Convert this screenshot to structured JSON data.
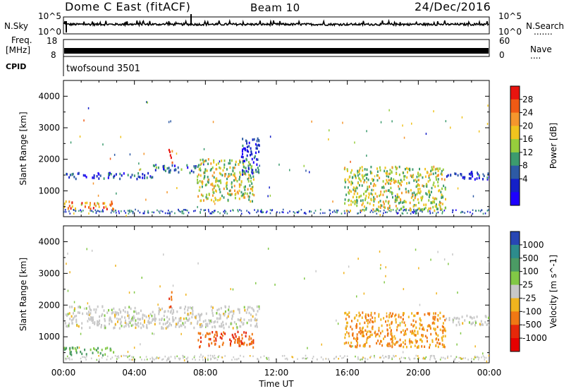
{
  "header": {
    "station": "Dome C East (fitACF)",
    "beam": "Beam 10",
    "date": "24/Dec/2016"
  },
  "strips": {
    "nsky_label": "N.Sky",
    "nsky_ticks": [
      "10^5",
      "10^0"
    ],
    "nsearch_label": "N.Search",
    "nsearch_ticks": [
      "10^5",
      "10^0"
    ],
    "nsearch_dots": ".......",
    "freq_label": "Freq.",
    "freq_unit": "[MHz]",
    "freq_ticks": [
      "18",
      "8"
    ],
    "nave_label": "Nave",
    "nave_dots": "....",
    "nave_ticks": [
      "60",
      "0"
    ],
    "cpid_label": "CPID",
    "cpid_text": "twofsound 3501"
  },
  "chart_data": [
    {
      "type": "heatmap",
      "title": "",
      "ylabel": "Slant Range [km]",
      "xlabel": "",
      "yticks": [
        1000,
        2000,
        3000,
        4000
      ],
      "ylim": [
        180,
        4500
      ],
      "colorbar": {
        "label": "Power [dB]",
        "ticks": [
          "28",
          "24",
          "20",
          "16",
          "12",
          "8",
          "4"
        ],
        "colors": [
          "#e8140f",
          "#f05a14",
          "#f5962d",
          "#f0c31e",
          "#96cd3c",
          "#3c9b6e",
          "#2d5aa5",
          "#1420c8",
          "#1e00ff"
        ]
      },
      "regions": [
        {
          "x0": 0.0,
          "x1": 2.8,
          "y0": 450,
          "y1": 700,
          "value": 22
        },
        {
          "x0": 0.0,
          "x1": 5.0,
          "y0": 1400,
          "y1": 1600,
          "value": 6
        },
        {
          "x0": 5.0,
          "x1": 7.5,
          "y0": 1600,
          "y1": 1850,
          "value": 8
        },
        {
          "x0": 5.9,
          "x1": 6.1,
          "y0": 1900,
          "y1": 2450,
          "value": 28
        },
        {
          "x0": 7.5,
          "x1": 10.7,
          "y0": 700,
          "y1": 2050,
          "value": 16
        },
        {
          "x0": 10.0,
          "x1": 11.0,
          "y0": 1500,
          "y1": 2700,
          "value": 6
        },
        {
          "x0": 15.8,
          "x1": 21.5,
          "y0": 400,
          "y1": 1800,
          "value": 16
        },
        {
          "x0": 21.5,
          "x1": 24.0,
          "y0": 1400,
          "y1": 1650,
          "value": 6
        }
      ]
    },
    {
      "type": "heatmap",
      "title": "",
      "ylabel": "Slant Range [km]",
      "xlabel": "Time UT",
      "xticks": [
        "00:00",
        "04:00",
        "08:00",
        "12:00",
        "16:00",
        "20:00",
        "00:00"
      ],
      "yticks": [
        1000,
        2000,
        3000,
        4000
      ],
      "ylim": [
        180,
        4500
      ],
      "colorbar": {
        "label": "Velocity [m s^-1]",
        "ticks": [
          "1000",
          "500",
          "100",
          "25",
          "-25",
          "-100",
          "-500",
          "-1000"
        ],
        "colors": [
          "#2846b4",
          "#2d8c8c",
          "#4b9b64",
          "#82c846",
          "#c8c8c8",
          "#f0b41e",
          "#f07814",
          "#e6280a",
          "#e60000"
        ]
      },
      "regions": [
        {
          "x0": 0.0,
          "x1": 2.8,
          "y0": 450,
          "y1": 700,
          "value": 100
        },
        {
          "x0": 0.0,
          "x1": 11.0,
          "y0": 1300,
          "y1": 2000,
          "value": 0
        },
        {
          "x0": 5.9,
          "x1": 6.1,
          "y0": 1900,
          "y1": 2450,
          "value": -500
        },
        {
          "x0": 7.5,
          "x1": 10.7,
          "y0": 700,
          "y1": 1200,
          "value": -500
        },
        {
          "x0": 15.8,
          "x1": 21.5,
          "y0": 700,
          "y1": 1800,
          "value": -100
        },
        {
          "x0": 21.5,
          "x1": 24.0,
          "y0": 1400,
          "y1": 1700,
          "value": 0
        }
      ]
    }
  ]
}
